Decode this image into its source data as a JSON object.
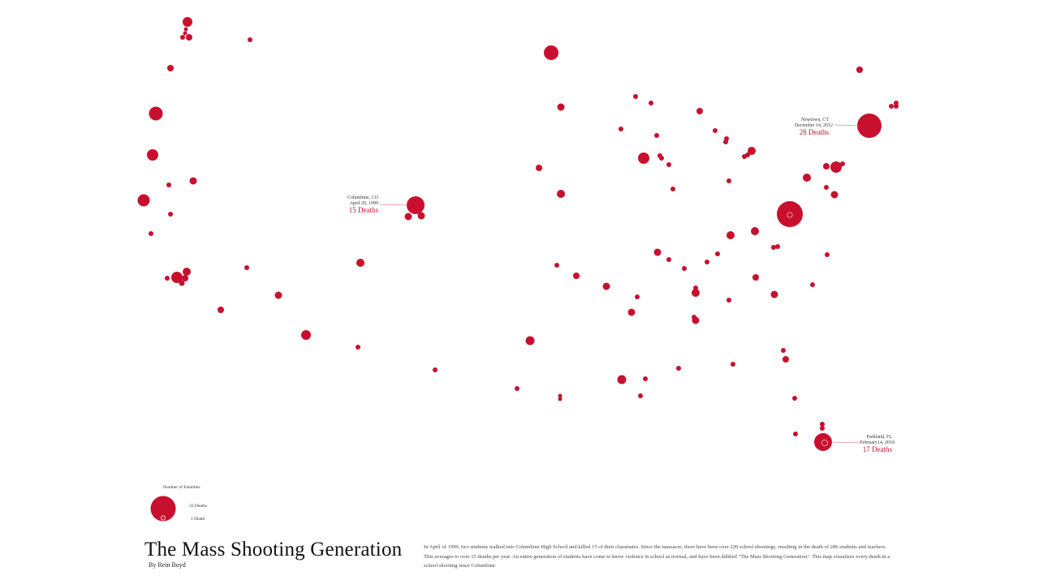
{
  "title": "The Mass Shooting Generation",
  "byline": "By Rein Boyd",
  "description": "In April of 1999, two students walked into Columbine High School and killed 15 of their classmates. Since the massacre, there have been over 220 school shootings, resulting in the death of 286 students and teachers. This averages to over 15 deaths per year. An entire generation of students have come to know violence in school as normal, and have been dubbed \"The Mass Shooting Generation\". This map visualizes every death in a school shooting since Columbine.",
  "legend": {
    "title": "Number of Fatalities",
    "max_label": "33 Deaths",
    "min_label": "1 Death",
    "max_deaths": 33,
    "min_deaths": 1
  },
  "callouts": [
    {
      "place": "Columbine, CO",
      "date": "April 20, 1999",
      "deaths_label": "15 Deaths",
      "deaths": 15
    },
    {
      "place": "Newtown, CT",
      "date": "December 14, 2012",
      "deaths_label": "28 Deaths",
      "deaths": 28
    },
    {
      "place": "Parkland, FL",
      "date": "February14, 2018",
      "deaths_label": "17 Deaths",
      "deaths": 17
    }
  ],
  "colors": {
    "marker": "#c8102e",
    "callout_line": "#e08a95"
  }
}
